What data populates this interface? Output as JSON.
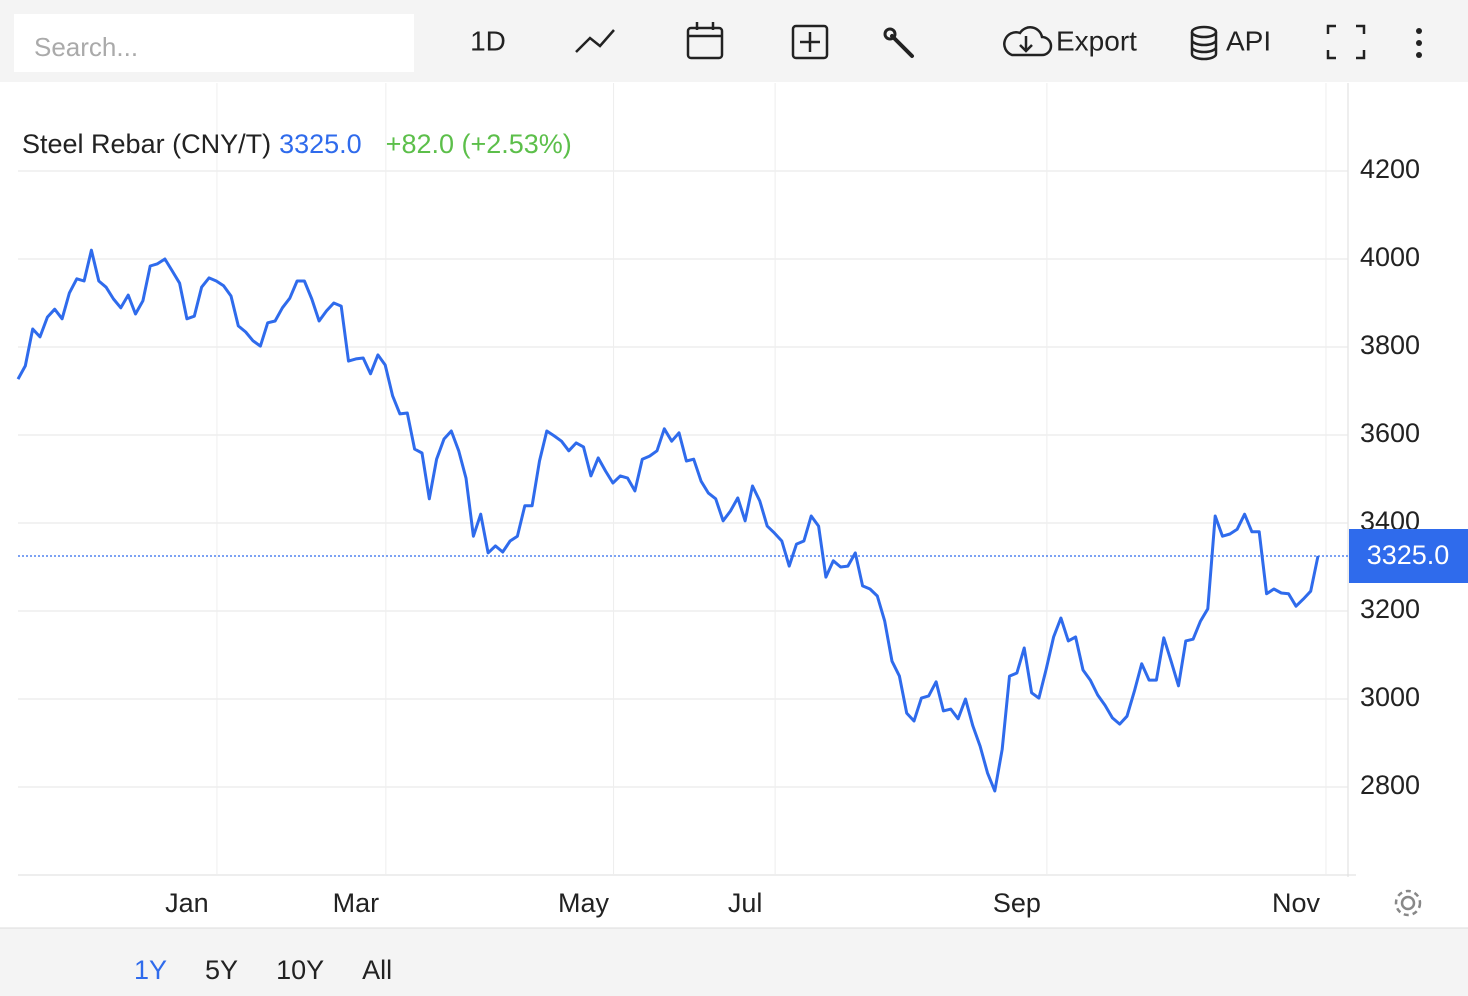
{
  "toolbar": {
    "search_placeholder": "Search...",
    "interval": "1D",
    "export": "Export",
    "api": "API"
  },
  "quote": {
    "price": "3325.0",
    "change": "+82.0 (+2.53%)"
  },
  "ranges": {
    "options": [
      "1Y",
      "5Y",
      "10Y",
      "All"
    ],
    "active": "1Y"
  },
  "chart_data": {
    "type": "line",
    "series": [
      {
        "name": "Steel Rebar (CNY/T)",
        "color": "#2f6bec",
        "values": [
          3727,
          3757,
          3841,
          3823,
          3868,
          3886,
          3864,
          3923,
          3955,
          3950,
          4020,
          3950,
          3936,
          3909,
          3889,
          3918,
          3875,
          3905,
          3984,
          3989,
          4000,
          3973,
          3945,
          3864,
          3870,
          3936,
          3957,
          3950,
          3939,
          3916,
          3848,
          3834,
          3814,
          3802,
          3855,
          3859,
          3889,
          3911,
          3950,
          3950,
          3909,
          3859,
          3882,
          3900,
          3893,
          3768,
          3773,
          3775,
          3739,
          3782,
          3759,
          3689,
          3648,
          3650,
          3568,
          3559,
          3455,
          3545,
          3591,
          3609,
          3564,
          3502,
          3370,
          3420,
          3332,
          3348,
          3334,
          3359,
          3370,
          3439,
          3439,
          3541,
          3609,
          3598,
          3586,
          3564,
          3582,
          3573,
          3507,
          3548,
          3518,
          3491,
          3507,
          3502,
          3473,
          3545,
          3552,
          3564,
          3614,
          3586,
          3605,
          3541,
          3545,
          3495,
          3468,
          3455,
          3405,
          3427,
          3457,
          3405,
          3484,
          3450,
          3393,
          3377,
          3359,
          3302,
          3352,
          3359,
          3416,
          3393,
          3277,
          3314,
          3300,
          3302,
          3332,
          3257,
          3250,
          3234,
          3177,
          3086,
          3052,
          2968,
          2950,
          3002,
          3007,
          3039,
          2973,
          2977,
          2955,
          3000,
          2939,
          2893,
          2832,
          2791,
          2886,
          3052,
          3059,
          3116,
          3014,
          3002,
          3068,
          3141,
          3184,
          3132,
          3141,
          3066,
          3043,
          3009,
          2986,
          2957,
          2943,
          2961,
          3018,
          3080,
          3043,
          3043,
          3139,
          3086,
          3030,
          3132,
          3136,
          3177,
          3205,
          3416,
          3370,
          3375,
          3386,
          3420,
          3380,
          3380,
          3239,
          3250,
          3241,
          3239,
          3211,
          3227,
          3245,
          3325
        ]
      }
    ],
    "categories": [
      null,
      null,
      null,
      null,
      null,
      null,
      null,
      null,
      null,
      null,
      null,
      null,
      null,
      null,
      null,
      null,
      null,
      null,
      null,
      null,
      null,
      null,
      null,
      "Jan",
      null,
      null,
      null,
      null,
      null,
      null,
      null,
      null,
      null,
      null,
      null,
      null,
      null,
      null,
      null,
      null,
      null,
      null,
      null,
      null,
      null,
      null,
      "Mar",
      null,
      null,
      null,
      null,
      null,
      null,
      null,
      null,
      null,
      null,
      null,
      null,
      null,
      null,
      null,
      null,
      null,
      null,
      null,
      null,
      null,
      null,
      null,
      null,
      null,
      null,
      null,
      null,
      null,
      null,
      "May",
      null,
      null,
      null,
      null,
      null,
      null,
      null,
      null,
      null,
      null,
      null,
      null,
      null,
      null,
      null,
      null,
      null,
      null,
      null,
      null,
      null,
      "Jul",
      null,
      null,
      null,
      null,
      null,
      null,
      null,
      null,
      null,
      null,
      null,
      null,
      null,
      null,
      null,
      null,
      null,
      null,
      null,
      null,
      null,
      null,
      null,
      null,
      null,
      null,
      null,
      null,
      null,
      null,
      null,
      null,
      null,
      null,
      null,
      null,
      "Sep",
      null,
      null,
      null,
      null,
      null,
      null,
      null,
      null,
      null,
      null,
      null,
      null,
      null,
      null,
      null,
      null,
      null,
      null,
      null,
      null,
      null,
      null,
      null,
      null,
      null,
      null,
      null,
      null,
      null,
      null,
      null,
      null,
      null,
      null,
      null,
      null,
      null,
      "Nov",
      null,
      null,
      null
    ],
    "ylim": [
      2600,
      4400
    ],
    "yticks": [
      2800,
      3000,
      3200,
      3400,
      3600,
      3800,
      4000,
      4200
    ],
    "grid": true,
    "change_color": "#5cbf4a"
  }
}
